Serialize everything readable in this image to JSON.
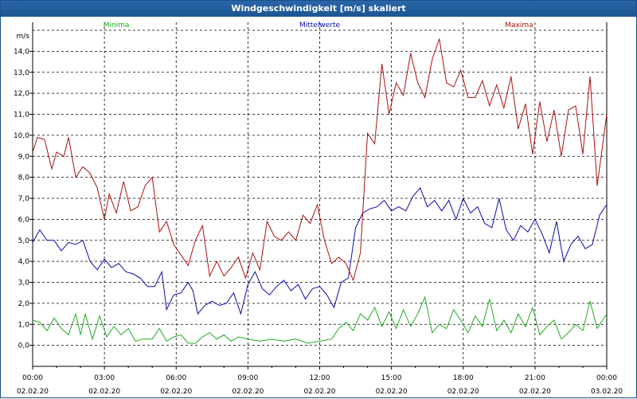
{
  "window": {
    "title": "Windgeschwindigkeit [m/s] skaliert"
  },
  "chart_data": {
    "type": "line",
    "title": "Windgeschwindigkeit [m/s] skaliert",
    "ylabel": "m/s",
    "xlabel": "",
    "ylim": [
      -1.0,
      15.0
    ],
    "xlim": [
      0,
      24
    ],
    "grid": true,
    "legend_position": "top",
    "y_ticks": [
      "0,0",
      "1,0",
      "2,0",
      "3,0",
      "4,0",
      "5,0",
      "6,0",
      "7,0",
      "8,0",
      "9,0",
      "10,0",
      "11,0",
      "12,0",
      "13,0",
      "14,0"
    ],
    "x_ticks": [
      {
        "time": "00:00",
        "date": "02.02.20"
      },
      {
        "time": "03:00",
        "date": "02.02.20"
      },
      {
        "time": "06:00",
        "date": "02.02.20"
      },
      {
        "time": "09:00",
        "date": "02.02.20"
      },
      {
        "time": "12:00",
        "date": "02.02.20"
      },
      {
        "time": "15:00",
        "date": "02.02.20"
      },
      {
        "time": "18:00",
        "date": "02.02.20"
      },
      {
        "time": "21:00",
        "date": "02.02.20"
      },
      {
        "time": "00:00",
        "date": "03.02.20"
      }
    ],
    "series": [
      {
        "name": "Minima",
        "color": "#22aa22",
        "points": [
          [
            0,
            1.2
          ],
          [
            0.3,
            1.1
          ],
          [
            0.6,
            0.7
          ],
          [
            0.9,
            1.3
          ],
          [
            1.2,
            0.8
          ],
          [
            1.5,
            0.5
          ],
          [
            1.8,
            1.5
          ],
          [
            2.0,
            0.5
          ],
          [
            2.2,
            1.5
          ],
          [
            2.5,
            0.3
          ],
          [
            2.8,
            1.4
          ],
          [
            3.1,
            0.4
          ],
          [
            3.4,
            0.9
          ],
          [
            3.7,
            0.5
          ],
          [
            4.0,
            0.8
          ],
          [
            4.3,
            0.2
          ],
          [
            4.6,
            0.3
          ],
          [
            5.0,
            0.3
          ],
          [
            5.3,
            0.8
          ],
          [
            5.6,
            0.2
          ],
          [
            5.9,
            0.4
          ],
          [
            6.2,
            0.5
          ],
          [
            6.5,
            0.1
          ],
          [
            6.8,
            0.1
          ],
          [
            7.1,
            0.4
          ],
          [
            7.4,
            0.6
          ],
          [
            7.7,
            0.3
          ],
          [
            8.0,
            0.5
          ],
          [
            8.3,
            0.2
          ],
          [
            8.6,
            0.4
          ],
          [
            9.0,
            0.3
          ],
          [
            9.5,
            0.2
          ],
          [
            10.0,
            0.3
          ],
          [
            10.5,
            0.2
          ],
          [
            11.0,
            0.3
          ],
          [
            11.5,
            0.1
          ],
          [
            12.0,
            0.2
          ],
          [
            12.5,
            0.3
          ],
          [
            12.8,
            0.8
          ],
          [
            13.1,
            1.1
          ],
          [
            13.4,
            0.7
          ],
          [
            13.7,
            1.5
          ],
          [
            14.0,
            1.2
          ],
          [
            14.3,
            1.8
          ],
          [
            14.6,
            0.9
          ],
          [
            14.9,
            1.6
          ],
          [
            15.2,
            0.8
          ],
          [
            15.5,
            1.7
          ],
          [
            15.8,
            0.9
          ],
          [
            16.1,
            1.5
          ],
          [
            16.4,
            2.3
          ],
          [
            16.7,
            0.6
          ],
          [
            17.0,
            1.0
          ],
          [
            17.3,
            0.8
          ],
          [
            17.6,
            1.7
          ],
          [
            17.9,
            1.2
          ],
          [
            18.2,
            0.6
          ],
          [
            18.5,
            1.4
          ],
          [
            18.8,
            0.9
          ],
          [
            19.1,
            2.2
          ],
          [
            19.4,
            0.7
          ],
          [
            19.7,
            1.2
          ],
          [
            20.0,
            0.6
          ],
          [
            20.3,
            1.5
          ],
          [
            20.6,
            0.9
          ],
          [
            20.9,
            1.8
          ],
          [
            21.2,
            0.5
          ],
          [
            21.5,
            0.9
          ],
          [
            21.8,
            1.2
          ],
          [
            22.1,
            0.3
          ],
          [
            22.4,
            0.6
          ],
          [
            22.7,
            1.0
          ],
          [
            23.0,
            0.7
          ],
          [
            23.3,
            2.1
          ],
          [
            23.6,
            0.8
          ],
          [
            24.0,
            1.5
          ]
        ]
      },
      {
        "name": "Mittelwerte",
        "color": "#0a0aaa",
        "points": [
          [
            0,
            4.9
          ],
          [
            0.3,
            5.5
          ],
          [
            0.6,
            5.0
          ],
          [
            0.9,
            5.0
          ],
          [
            1.2,
            4.5
          ],
          [
            1.5,
            4.9
          ],
          [
            1.8,
            4.8
          ],
          [
            2.1,
            5.0
          ],
          [
            2.4,
            4.0
          ],
          [
            2.7,
            3.6
          ],
          [
            3.0,
            4.1
          ],
          [
            3.3,
            3.7
          ],
          [
            3.6,
            3.9
          ],
          [
            3.9,
            3.5
          ],
          [
            4.2,
            3.4
          ],
          [
            4.5,
            3.2
          ],
          [
            4.8,
            2.8
          ],
          [
            5.1,
            2.8
          ],
          [
            5.4,
            3.5
          ],
          [
            5.6,
            1.7
          ],
          [
            5.9,
            2.4
          ],
          [
            6.2,
            2.5
          ],
          [
            6.5,
            3.0
          ],
          [
            6.7,
            2.6
          ],
          [
            6.9,
            1.5
          ],
          [
            7.2,
            1.9
          ],
          [
            7.5,
            2.1
          ],
          [
            7.8,
            1.9
          ],
          [
            8.1,
            2.0
          ],
          [
            8.4,
            2.5
          ],
          [
            8.7,
            1.5
          ],
          [
            9.0,
            2.9
          ],
          [
            9.3,
            3.5
          ],
          [
            9.6,
            2.7
          ],
          [
            9.9,
            2.4
          ],
          [
            10.2,
            2.8
          ],
          [
            10.5,
            3.1
          ],
          [
            10.8,
            2.6
          ],
          [
            11.1,
            2.9
          ],
          [
            11.4,
            2.2
          ],
          [
            11.7,
            2.7
          ],
          [
            12.0,
            2.8
          ],
          [
            12.3,
            2.4
          ],
          [
            12.6,
            1.8
          ],
          [
            12.9,
            3.0
          ],
          [
            13.2,
            3.2
          ],
          [
            13.5,
            5.6
          ],
          [
            13.8,
            6.3
          ],
          [
            14.1,
            6.5
          ],
          [
            14.4,
            6.6
          ],
          [
            14.7,
            6.9
          ],
          [
            15.0,
            6.4
          ],
          [
            15.3,
            6.6
          ],
          [
            15.6,
            6.4
          ],
          [
            15.9,
            7.1
          ],
          [
            16.2,
            7.5
          ],
          [
            16.5,
            6.6
          ],
          [
            16.8,
            6.9
          ],
          [
            17.1,
            6.4
          ],
          [
            17.4,
            6.9
          ],
          [
            17.7,
            6.0
          ],
          [
            18.0,
            7.0
          ],
          [
            18.3,
            6.3
          ],
          [
            18.6,
            6.6
          ],
          [
            18.9,
            5.8
          ],
          [
            19.2,
            5.6
          ],
          [
            19.5,
            7.0
          ],
          [
            19.8,
            5.5
          ],
          [
            20.1,
            5.0
          ],
          [
            20.4,
            5.7
          ],
          [
            20.7,
            5.4
          ],
          [
            21.0,
            6.0
          ],
          [
            21.3,
            5.3
          ],
          [
            21.6,
            4.4
          ],
          [
            21.9,
            5.9
          ],
          [
            22.2,
            4.0
          ],
          [
            22.5,
            4.8
          ],
          [
            22.8,
            5.2
          ],
          [
            23.1,
            4.6
          ],
          [
            23.4,
            4.8
          ],
          [
            23.7,
            6.2
          ],
          [
            24.0,
            6.7
          ]
        ]
      },
      {
        "name": "Maxima",
        "color": "#aa0f0f",
        "points": [
          [
            0,
            9.2
          ],
          [
            0.2,
            9.9
          ],
          [
            0.5,
            9.8
          ],
          [
            0.8,
            8.4
          ],
          [
            1.0,
            9.2
          ],
          [
            1.3,
            9.0
          ],
          [
            1.5,
            9.9
          ],
          [
            1.8,
            8.0
          ],
          [
            2.1,
            8.5
          ],
          [
            2.4,
            8.2
          ],
          [
            2.7,
            7.5
          ],
          [
            3.0,
            6.0
          ],
          [
            3.2,
            7.2
          ],
          [
            3.5,
            6.3
          ],
          [
            3.8,
            7.8
          ],
          [
            4.1,
            6.4
          ],
          [
            4.4,
            6.6
          ],
          [
            4.7,
            7.6
          ],
          [
            5.0,
            8.0
          ],
          [
            5.3,
            5.4
          ],
          [
            5.6,
            5.9
          ],
          [
            5.9,
            4.8
          ],
          [
            6.2,
            4.3
          ],
          [
            6.5,
            3.8
          ],
          [
            6.8,
            5.0
          ],
          [
            7.1,
            5.7
          ],
          [
            7.4,
            3.3
          ],
          [
            7.7,
            4.0
          ],
          [
            8.0,
            3.3
          ],
          [
            8.3,
            3.7
          ],
          [
            8.6,
            4.2
          ],
          [
            8.9,
            3.2
          ],
          [
            9.2,
            4.4
          ],
          [
            9.5,
            3.6
          ],
          [
            9.8,
            5.9
          ],
          [
            10.1,
            5.2
          ],
          [
            10.4,
            5.0
          ],
          [
            10.7,
            5.4
          ],
          [
            11.0,
            5.0
          ],
          [
            11.3,
            6.2
          ],
          [
            11.6,
            5.8
          ],
          [
            11.9,
            6.7
          ],
          [
            12.2,
            5.0
          ],
          [
            12.5,
            3.9
          ],
          [
            12.8,
            4.2
          ],
          [
            13.1,
            3.9
          ],
          [
            13.4,
            3.1
          ],
          [
            13.7,
            4.4
          ],
          [
            14.0,
            10.1
          ],
          [
            14.3,
            9.6
          ],
          [
            14.6,
            13.4
          ],
          [
            14.9,
            11.0
          ],
          [
            15.2,
            12.5
          ],
          [
            15.5,
            11.9
          ],
          [
            15.8,
            13.9
          ],
          [
            16.1,
            12.5
          ],
          [
            16.4,
            11.8
          ],
          [
            16.7,
            13.6
          ],
          [
            17.0,
            14.6
          ],
          [
            17.3,
            12.5
          ],
          [
            17.6,
            12.3
          ],
          [
            17.9,
            13.1
          ],
          [
            18.2,
            11.8
          ],
          [
            18.5,
            11.8
          ],
          [
            18.8,
            12.6
          ],
          [
            19.1,
            11.4
          ],
          [
            19.4,
            12.4
          ],
          [
            19.7,
            11.3
          ],
          [
            20.0,
            12.8
          ],
          [
            20.3,
            10.3
          ],
          [
            20.6,
            11.5
          ],
          [
            20.9,
            9.1
          ],
          [
            21.2,
            11.6
          ],
          [
            21.5,
            9.7
          ],
          [
            21.8,
            11.2
          ],
          [
            22.1,
            9.0
          ],
          [
            22.4,
            11.2
          ],
          [
            22.7,
            11.4
          ],
          [
            23.0,
            9.1
          ],
          [
            23.3,
            12.8
          ],
          [
            23.6,
            7.6
          ],
          [
            24.0,
            11.0
          ]
        ]
      }
    ]
  }
}
